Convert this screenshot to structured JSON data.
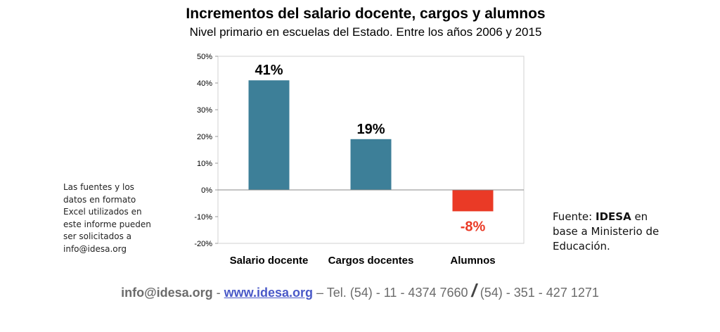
{
  "chart_data": {
    "type": "bar",
    "title": "Incrementos del salario docente, cargos y alumnos",
    "subtitle": "Nivel primario en escuelas del Estado. Entre los años 2006 y 2015",
    "categories": [
      "Salario docente",
      "Cargos docentes",
      "Alumnos"
    ],
    "values": [
      41,
      19,
      -8
    ],
    "data_labels": [
      "41%",
      "19%",
      "-8%"
    ],
    "colors": [
      "#3d7f98",
      "#3d7f98",
      "#ea3a26"
    ],
    "label_colors": [
      "#000000",
      "#000000",
      "#ea3a26"
    ],
    "ylim": [
      -20,
      50
    ],
    "yticks": [
      50,
      40,
      30,
      20,
      10,
      0,
      -10,
      -20
    ],
    "ytick_labels": [
      "50%",
      "40%",
      "30%",
      "20%",
      "10%",
      "0%",
      "-10%",
      "-20%"
    ],
    "grid": false,
    "xlabel": "",
    "ylabel": ""
  },
  "notes": {
    "left_lines": [
      "Las fuentes y los",
      "datos en formato",
      "Excel utilizados en",
      "este informe pueden",
      "ser solicitados a",
      "info@idesa.org"
    ],
    "source_prefix": "Fuente: ",
    "source_brand": "IDESA",
    "source_suffix": " en",
    "source_lines": [
      "base a Ministerio de",
      "Educación."
    ]
  },
  "footer": {
    "email": "info@idesa.org",
    "sep1": " - ",
    "web": "www.idesa.org",
    "tel": " – Tel. (54) - 11 - 4374 7660 ",
    "slash": "/",
    "tel2": " (54) - 351 - 427 1271"
  }
}
